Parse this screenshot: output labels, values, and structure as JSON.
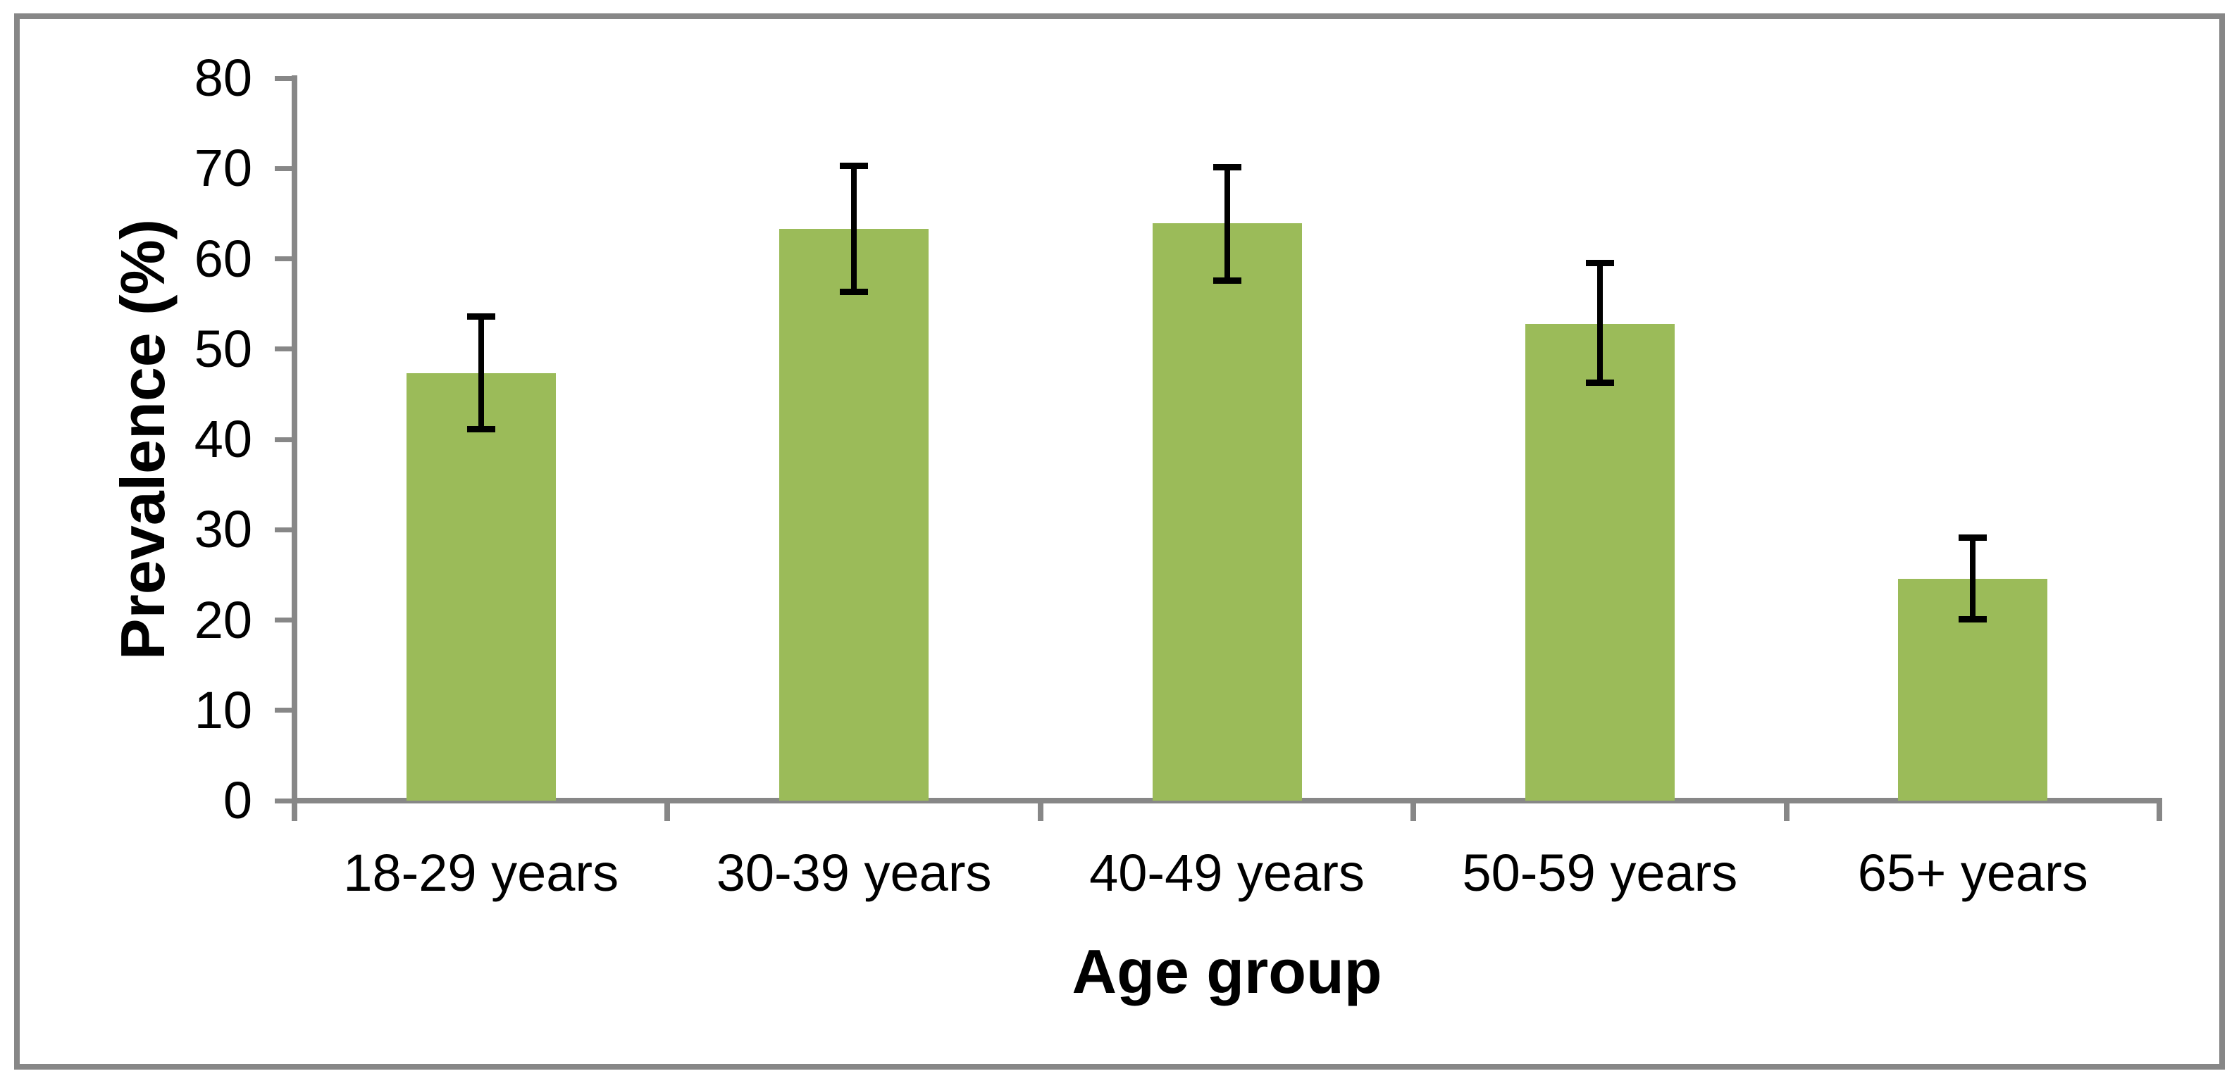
{
  "chart_data": {
    "type": "bar",
    "title": "",
    "xlabel": "Age group",
    "ylabel": "Prevalence (%)",
    "categories": [
      "18-29 years",
      "30-39 years",
      "40-49 years",
      "50-59 years",
      "65+ years"
    ],
    "values": [
      47.3,
      63.3,
      63.9,
      52.8,
      24.6
    ],
    "error_low": [
      41.1,
      56.3,
      57.6,
      46.3,
      20.1
    ],
    "error_high": [
      53.6,
      70.3,
      70.1,
      59.5,
      29.1
    ],
    "y_ticks": [
      0,
      10,
      20,
      30,
      40,
      50,
      60,
      70,
      80
    ],
    "ylim": [
      0,
      80
    ],
    "grid": false,
    "legend": "none",
    "colors": {
      "bar": "#9BBB59",
      "axis": "#878787",
      "error_bar": "#000000",
      "frame": "#878787",
      "background": "#FFFFFF",
      "text": "#000000"
    }
  }
}
